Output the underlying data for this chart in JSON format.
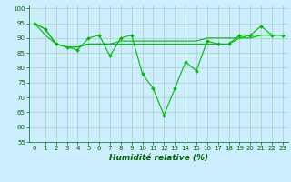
{
  "title": "",
  "xlabel": "Humidité relative (%)",
  "ylabel": "",
  "background_color": "#cceeff",
  "grid_color": "#aaccbb",
  "line_color": "#00bb00",
  "xlim": [
    -0.5,
    23.5
  ],
  "ylim": [
    55,
    101
  ],
  "yticks": [
    55,
    60,
    65,
    70,
    75,
    80,
    85,
    90,
    95,
    100
  ],
  "xticks": [
    0,
    1,
    2,
    3,
    4,
    5,
    6,
    7,
    8,
    9,
    10,
    11,
    12,
    13,
    14,
    15,
    16,
    17,
    18,
    19,
    20,
    21,
    22,
    23
  ],
  "series": [
    [
      95,
      93,
      88,
      87,
      86,
      90,
      91,
      84,
      90,
      91,
      78,
      73,
      64,
      73,
      82,
      79,
      89,
      88,
      88,
      91,
      91,
      94,
      91,
      91
    ],
    [
      95,
      93,
      88,
      87,
      87,
      88,
      88,
      88,
      88,
      88,
      88,
      88,
      88,
      88,
      88,
      88,
      88,
      88,
      88,
      90,
      91,
      91,
      91,
      91
    ],
    [
      95,
      91,
      88,
      87,
      87,
      88,
      88,
      88,
      89,
      89,
      89,
      89,
      89,
      89,
      89,
      89,
      90,
      90,
      90,
      90,
      90,
      91,
      91,
      91
    ]
  ],
  "markersize": 2.0,
  "linewidth": 0.8,
  "tick_fontsize": 5.0,
  "xlabel_fontsize": 6.5
}
